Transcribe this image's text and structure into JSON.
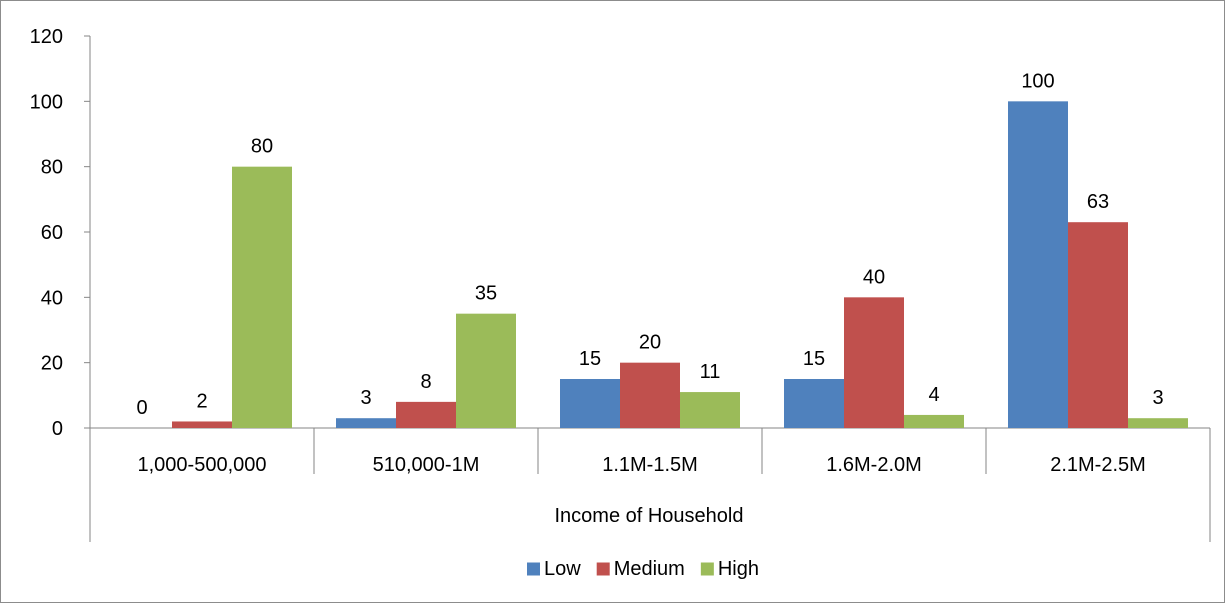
{
  "chart_data": {
    "type": "bar",
    "title": "",
    "xlabel": "Income of Household",
    "ylabel": "",
    "ylim": [
      0,
      120
    ],
    "yticks": [
      0,
      20,
      40,
      60,
      80,
      100,
      120
    ],
    "categories": [
      "1,000-500,000",
      "510,000-1M",
      "1.1M-1.5M",
      "1.6M-2.0M",
      "2.1M-2.5M"
    ],
    "series": [
      {
        "name": "Low",
        "color": "#4F81BD",
        "values": [
          0,
          3,
          15,
          15,
          100
        ]
      },
      {
        "name": "Medium",
        "color": "#C0504D",
        "values": [
          2,
          8,
          20,
          40,
          63
        ]
      },
      {
        "name": "High",
        "color": "#9BBB59",
        "values": [
          80,
          35,
          11,
          4,
          3
        ]
      }
    ],
    "data_labels": true,
    "grid": false,
    "legend_position": "bottom"
  }
}
